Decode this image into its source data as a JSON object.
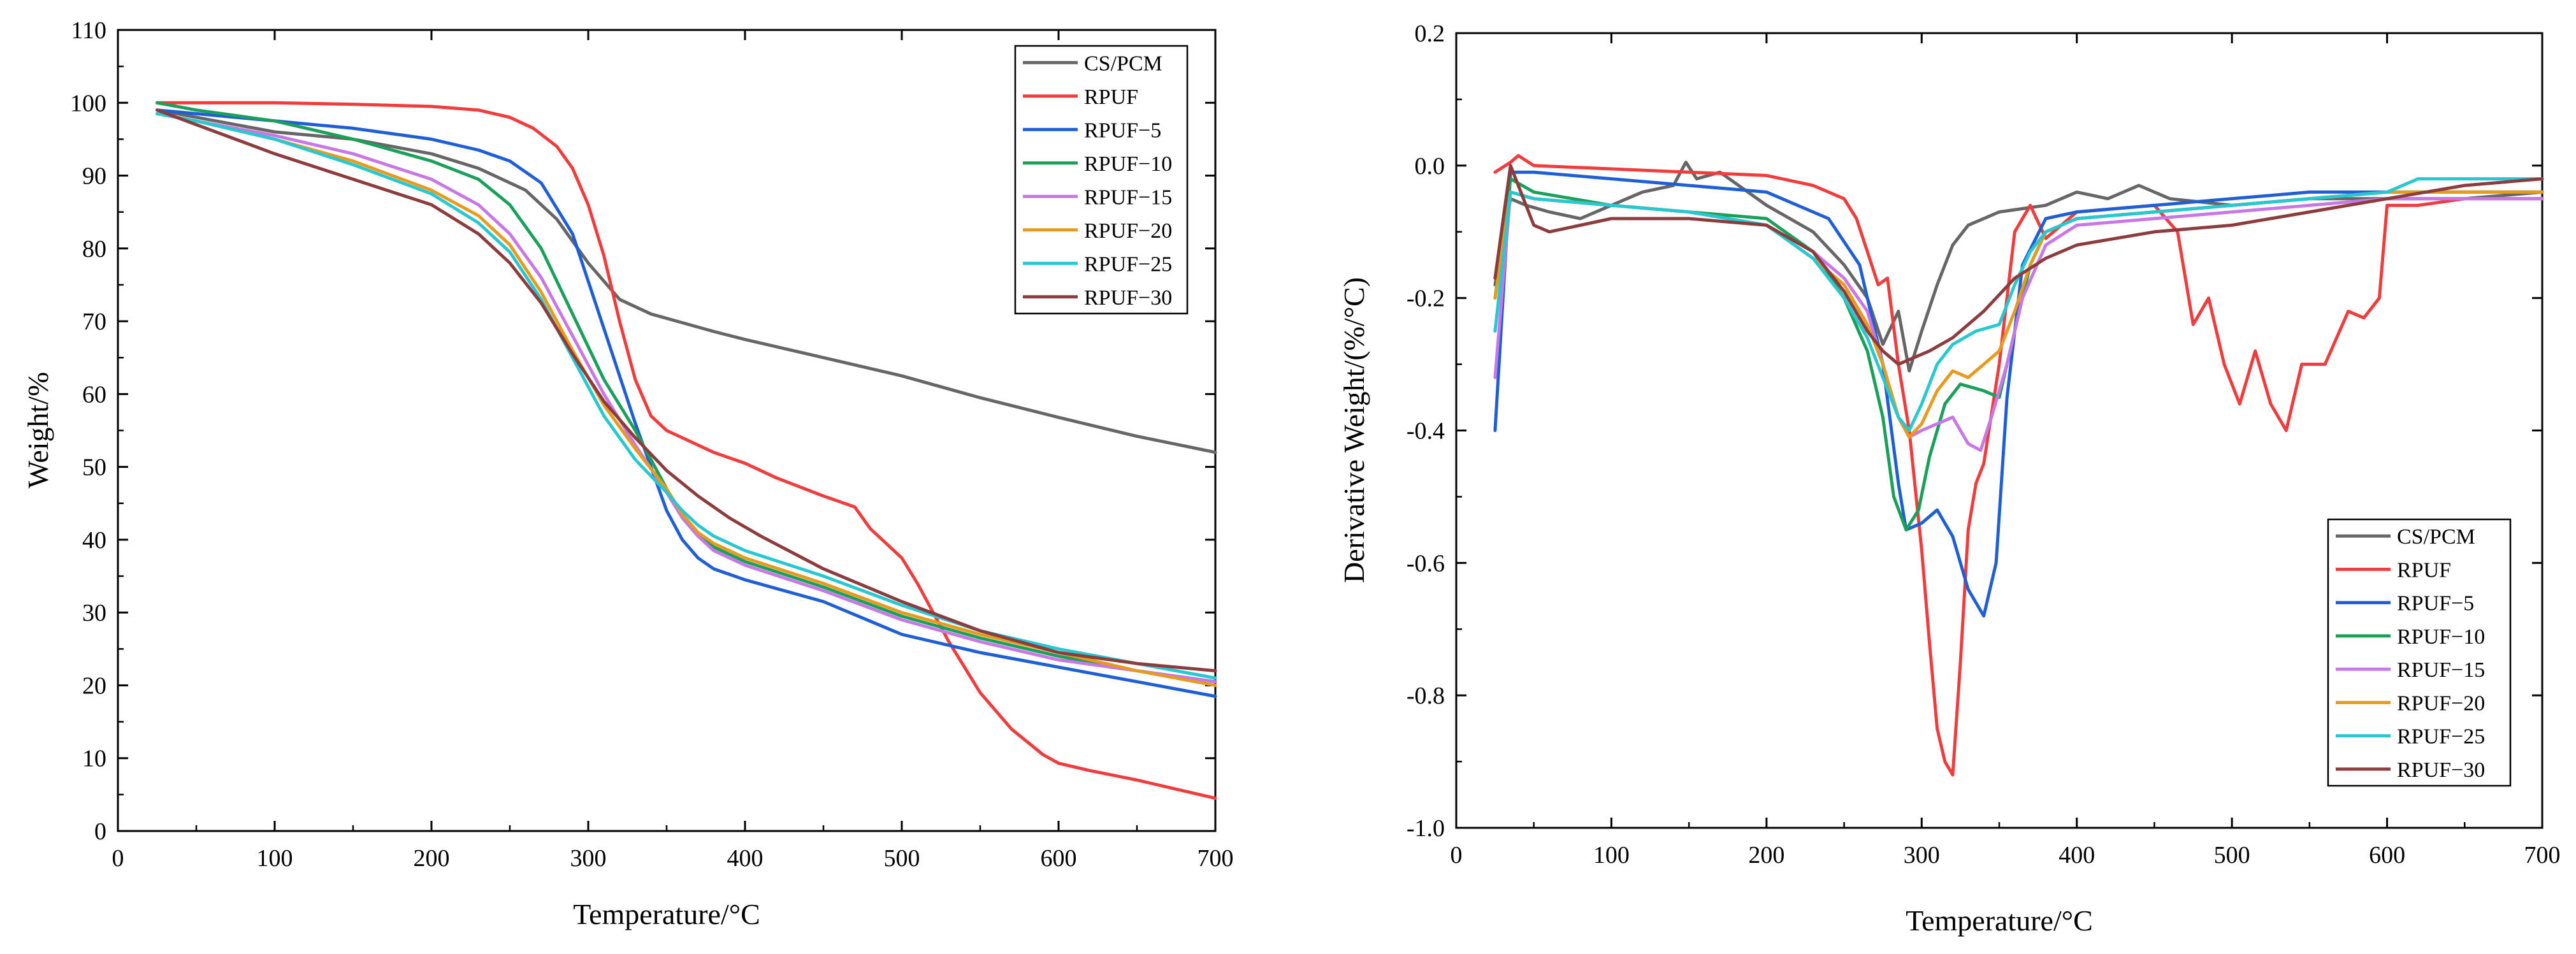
{
  "figure": {
    "panels": 2
  },
  "chart_data": [
    {
      "type": "line",
      "xlabel": "Temperature/°C",
      "ylabel": "Weight/%",
      "xlim": [
        0,
        700
      ],
      "ylim": [
        0,
        110
      ],
      "xticks": [
        0,
        100,
        200,
        300,
        400,
        500,
        600,
        700
      ],
      "yticks": [
        0,
        10,
        20,
        30,
        40,
        50,
        60,
        70,
        80,
        90,
        100,
        110
      ],
      "legend_position": "top-right",
      "series": [
        {
          "name": "CS/PCM",
          "color": "#666666",
          "x": [
            25,
            50,
            100,
            150,
            200,
            230,
            260,
            280,
            300,
            320,
            340,
            360,
            380,
            400,
            450,
            500,
            550,
            600,
            650,
            700
          ],
          "y": [
            99,
            98,
            96,
            95,
            93,
            91,
            88,
            84,
            78,
            73,
            71,
            69.8,
            68.6,
            67.5,
            65,
            62.5,
            59.5,
            56.8,
            54.2,
            52
          ]
        },
        {
          "name": "RPUF",
          "color": "#f03c3c",
          "x": [
            25,
            50,
            100,
            150,
            200,
            230,
            250,
            265,
            280,
            290,
            300,
            310,
            320,
            330,
            340,
            350,
            360,
            370,
            380,
            400,
            420,
            450,
            470,
            480,
            490,
            500,
            510,
            520,
            530,
            540,
            550,
            570,
            590,
            600,
            620,
            650,
            680,
            700
          ],
          "y": [
            100,
            100,
            100,
            99.8,
            99.5,
            99,
            98,
            96.5,
            94,
            91,
            86,
            79,
            70,
            62,
            57,
            55,
            54,
            53,
            52,
            50.5,
            48.5,
            46,
            44.5,
            41.5,
            39.5,
            37.5,
            34,
            30,
            26,
            22.5,
            19,
            14,
            10.5,
            9.3,
            8.3,
            7,
            5.5,
            4.5
          ]
        },
        {
          "name": "RPUF−5",
          "color": "#1f5fd6",
          "x": [
            25,
            50,
            100,
            150,
            200,
            230,
            250,
            270,
            290,
            310,
            330,
            350,
            360,
            370,
            380,
            400,
            450,
            500,
            550,
            600,
            650,
            700
          ],
          "y": [
            99,
            98.5,
            97.5,
            96.5,
            95,
            93.5,
            92,
            89,
            82,
            69,
            56,
            44,
            40,
            37.5,
            36,
            34.5,
            31.5,
            27,
            24.5,
            22.5,
            20.5,
            18.5
          ]
        },
        {
          "name": "RPUF−10",
          "color": "#1aa05a",
          "x": [
            25,
            50,
            100,
            150,
            200,
            230,
            250,
            270,
            290,
            310,
            330,
            350,
            360,
            370,
            380,
            400,
            450,
            500,
            550,
            600,
            650,
            700
          ],
          "y": [
            100,
            99,
            97.5,
            95,
            92,
            89.5,
            86,
            80,
            71,
            62,
            55,
            47,
            43,
            40.5,
            39,
            37,
            33.5,
            29.5,
            26.5,
            24,
            22,
            20.5
          ]
        },
        {
          "name": "RPUF−15",
          "color": "#c878e6",
          "x": [
            25,
            50,
            100,
            150,
            200,
            230,
            250,
            270,
            290,
            310,
            330,
            350,
            360,
            370,
            380,
            400,
            450,
            500,
            550,
            600,
            650,
            700
          ],
          "y": [
            98.5,
            97.5,
            95.5,
            93,
            89.5,
            86,
            82,
            76,
            68,
            60,
            53,
            46.5,
            43,
            40.5,
            38.5,
            36.5,
            33,
            29,
            26,
            23.5,
            22,
            20.5
          ]
        },
        {
          "name": "RPUF−20",
          "color": "#e69b1e",
          "x": [
            25,
            50,
            100,
            150,
            200,
            230,
            250,
            270,
            290,
            310,
            330,
            350,
            360,
            370,
            380,
            400,
            450,
            500,
            550,
            600,
            650,
            700
          ],
          "y": [
            98.5,
            97.5,
            95,
            92,
            88,
            84.5,
            80.5,
            74,
            66,
            58.5,
            52.5,
            47,
            43.5,
            41,
            39.5,
            37.5,
            34,
            30,
            27,
            24.5,
            22,
            20
          ]
        },
        {
          "name": "RPUF−25",
          "color": "#28c8d2",
          "x": [
            25,
            50,
            100,
            150,
            200,
            230,
            250,
            270,
            290,
            310,
            330,
            350,
            360,
            370,
            380,
            400,
            450,
            500,
            550,
            600,
            650,
            700
          ],
          "y": [
            98.5,
            97.5,
            95,
            91.5,
            87.5,
            83.5,
            79.5,
            73,
            65,
            57,
            51,
            46.5,
            44,
            42,
            40.5,
            38.5,
            35,
            31,
            27.5,
            25,
            23,
            21
          ]
        },
        {
          "name": "RPUF−30",
          "color": "#8c3c3c",
          "x": [
            25,
            50,
            100,
            150,
            200,
            230,
            250,
            270,
            290,
            310,
            330,
            350,
            370,
            390,
            410,
            450,
            500,
            550,
            600,
            650,
            700
          ],
          "y": [
            99,
            97,
            93,
            89.5,
            86,
            82,
            78,
            72.5,
            65.5,
            59,
            54,
            49.5,
            46,
            43,
            40.5,
            36,
            31.5,
            27.5,
            24.5,
            23,
            22
          ]
        }
      ]
    },
    {
      "type": "line",
      "xlabel": "Temperature/°C",
      "ylabel": "Derivative Weight/(%/°C)",
      "xlim": [
        0,
        700
      ],
      "ylim": [
        -1.0,
        0.2
      ],
      "xticks": [
        0,
        100,
        200,
        300,
        400,
        500,
        600,
        700
      ],
      "yticks": [
        -1.0,
        -0.8,
        -0.6,
        -0.4,
        -0.2,
        0.0,
        0.2
      ],
      "legend_position": "bottom-right",
      "series": [
        {
          "name": "CS/PCM",
          "color": "#666666",
          "x": [
            25,
            35,
            45,
            60,
            80,
            100,
            120,
            140,
            148,
            155,
            170,
            200,
            230,
            250,
            265,
            275,
            285,
            292,
            300,
            310,
            320,
            330,
            350,
            380,
            400,
            420,
            440,
            460,
            500,
            550,
            600,
            650,
            700
          ],
          "y": [
            -0.18,
            -0.05,
            -0.06,
            -0.07,
            -0.08,
            -0.06,
            -0.04,
            -0.03,
            0.005,
            -0.02,
            -0.01,
            -0.06,
            -0.1,
            -0.15,
            -0.2,
            -0.27,
            -0.22,
            -0.31,
            -0.25,
            -0.18,
            -0.12,
            -0.09,
            -0.07,
            -0.06,
            -0.04,
            -0.05,
            -0.03,
            -0.05,
            -0.06,
            -0.05,
            -0.05,
            -0.05,
            -0.04
          ]
        },
        {
          "name": "RPUF",
          "color": "#f03c3c",
          "x": [
            25,
            35,
            40,
            50,
            100,
            150,
            200,
            230,
            250,
            258,
            265,
            272,
            278,
            285,
            292,
            300,
            305,
            310,
            315,
            320,
            325,
            330,
            335,
            340,
            350,
            360,
            370,
            380,
            400,
            450,
            465,
            475,
            485,
            495,
            505,
            515,
            525,
            535,
            545,
            560,
            575,
            585,
            595,
            600,
            620,
            650,
            700
          ],
          "y": [
            -0.01,
            0.005,
            0.015,
            0.0,
            -0.005,
            -0.01,
            -0.015,
            -0.03,
            -0.05,
            -0.08,
            -0.13,
            -0.18,
            -0.17,
            -0.3,
            -0.4,
            -0.58,
            -0.72,
            -0.85,
            -0.9,
            -0.92,
            -0.75,
            -0.55,
            -0.48,
            -0.45,
            -0.3,
            -0.1,
            -0.06,
            -0.11,
            -0.07,
            -0.06,
            -0.1,
            -0.24,
            -0.2,
            -0.3,
            -0.36,
            -0.28,
            -0.36,
            -0.4,
            -0.3,
            -0.3,
            -0.22,
            -0.23,
            -0.2,
            -0.06,
            -0.06,
            -0.05,
            -0.05
          ]
        },
        {
          "name": "RPUF−5",
          "color": "#1f5fd6",
          "x": [
            25,
            35,
            50,
            100,
            150,
            200,
            240,
            260,
            275,
            285,
            290,
            300,
            310,
            320,
            330,
            340,
            348,
            355,
            365,
            380,
            400,
            450,
            500,
            550,
            600,
            650,
            700
          ],
          "y": [
            -0.4,
            -0.01,
            -0.01,
            -0.02,
            -0.03,
            -0.04,
            -0.08,
            -0.15,
            -0.3,
            -0.48,
            -0.55,
            -0.54,
            -0.52,
            -0.56,
            -0.64,
            -0.68,
            -0.6,
            -0.35,
            -0.15,
            -0.08,
            -0.07,
            -0.06,
            -0.05,
            -0.04,
            -0.04,
            -0.04,
            -0.04
          ]
        },
        {
          "name": "RPUF−10",
          "color": "#1aa05a",
          "x": [
            25,
            35,
            50,
            100,
            150,
            200,
            230,
            250,
            265,
            275,
            282,
            290,
            298,
            305,
            315,
            325,
            340,
            350,
            360,
            370,
            380,
            400,
            450,
            500,
            550,
            600,
            650,
            700
          ],
          "y": [
            -0.2,
            -0.02,
            -0.04,
            -0.06,
            -0.07,
            -0.08,
            -0.13,
            -0.2,
            -0.28,
            -0.38,
            -0.5,
            -0.55,
            -0.52,
            -0.44,
            -0.36,
            -0.33,
            -0.34,
            -0.35,
            -0.25,
            -0.15,
            -0.1,
            -0.08,
            -0.07,
            -0.06,
            -0.05,
            -0.04,
            -0.04,
            -0.04
          ]
        },
        {
          "name": "RPUF−15",
          "color": "#c878e6",
          "x": [
            25,
            35,
            50,
            100,
            150,
            200,
            230,
            250,
            265,
            275,
            285,
            292,
            300,
            310,
            320,
            330,
            338,
            345,
            355,
            365,
            380,
            400,
            450,
            500,
            550,
            600,
            650,
            700
          ],
          "y": [
            -0.32,
            -0.04,
            -0.05,
            -0.06,
            -0.07,
            -0.09,
            -0.13,
            -0.17,
            -0.22,
            -0.3,
            -0.38,
            -0.41,
            -0.4,
            -0.39,
            -0.38,
            -0.42,
            -0.43,
            -0.38,
            -0.3,
            -0.2,
            -0.12,
            -0.09,
            -0.08,
            -0.07,
            -0.06,
            -0.05,
            -0.05,
            -0.05
          ]
        },
        {
          "name": "RPUF−20",
          "color": "#e69b1e",
          "x": [
            25,
            35,
            50,
            100,
            150,
            200,
            230,
            250,
            265,
            275,
            285,
            292,
            300,
            310,
            320,
            330,
            340,
            350,
            360,
            370,
            380,
            400,
            450,
            500,
            550,
            600,
            650,
            700
          ],
          "y": [
            -0.2,
            -0.04,
            -0.05,
            -0.06,
            -0.07,
            -0.09,
            -0.14,
            -0.18,
            -0.24,
            -0.3,
            -0.38,
            -0.41,
            -0.39,
            -0.34,
            -0.31,
            -0.32,
            -0.3,
            -0.28,
            -0.22,
            -0.15,
            -0.1,
            -0.08,
            -0.07,
            -0.06,
            -0.05,
            -0.04,
            -0.04,
            -0.04
          ]
        },
        {
          "name": "RPUF−25",
          "color": "#28c8d2",
          "x": [
            25,
            35,
            50,
            100,
            150,
            200,
            230,
            250,
            265,
            275,
            285,
            292,
            300,
            310,
            320,
            335,
            350,
            360,
            370,
            380,
            400,
            450,
            500,
            550,
            600,
            620,
            650,
            700
          ],
          "y": [
            -0.25,
            -0.04,
            -0.05,
            -0.06,
            -0.07,
            -0.09,
            -0.14,
            -0.2,
            -0.26,
            -0.32,
            -0.38,
            -0.4,
            -0.36,
            -0.3,
            -0.27,
            -0.25,
            -0.24,
            -0.18,
            -0.13,
            -0.1,
            -0.08,
            -0.07,
            -0.06,
            -0.05,
            -0.04,
            -0.02,
            -0.02,
            -0.02
          ]
        },
        {
          "name": "RPUF−30",
          "color": "#8c3c3c",
          "x": [
            25,
            35,
            45,
            50,
            60,
            100,
            150,
            200,
            230,
            250,
            265,
            275,
            285,
            295,
            305,
            320,
            340,
            360,
            380,
            400,
            450,
            500,
            550,
            600,
            650,
            700
          ],
          "y": [
            -0.17,
            0.0,
            -0.06,
            -0.09,
            -0.1,
            -0.08,
            -0.08,
            -0.09,
            -0.13,
            -0.19,
            -0.25,
            -0.28,
            -0.3,
            -0.29,
            -0.28,
            -0.26,
            -0.22,
            -0.17,
            -0.14,
            -0.12,
            -0.1,
            -0.09,
            -0.07,
            -0.05,
            -0.03,
            -0.02
          ]
        }
      ]
    }
  ]
}
